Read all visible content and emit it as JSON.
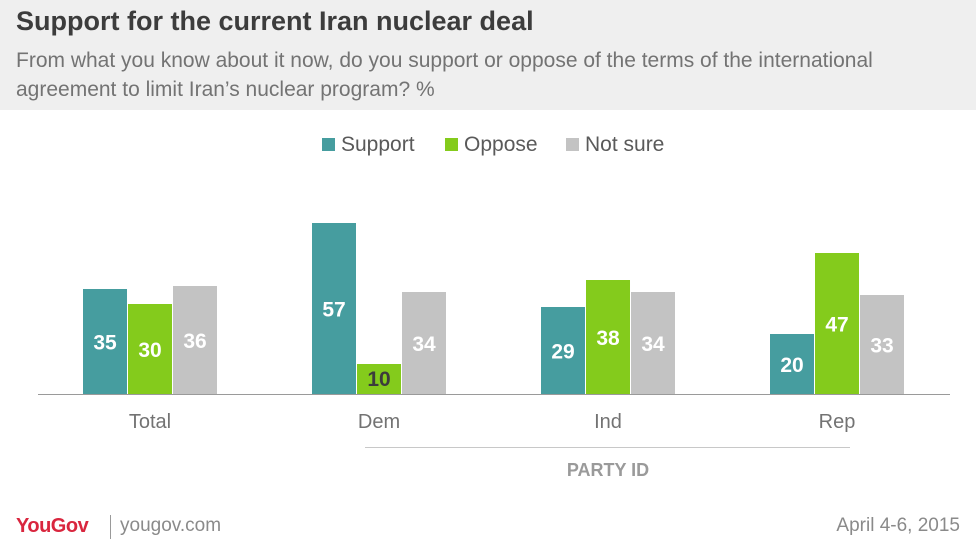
{
  "header": {
    "title": "Support for the current Iran nuclear deal",
    "subtitle": "From what you know about it now, do you support or oppose of the terms of the international agreement to limit Iran’s nuclear program? %"
  },
  "chart_data": {
    "type": "bar",
    "categories": [
      "Total",
      "Dem",
      "Ind",
      "Rep"
    ],
    "series": [
      {
        "name": "Support",
        "color": "#469d9f",
        "values": [
          35,
          57,
          29,
          20
        ]
      },
      {
        "name": "Oppose",
        "color": "#84cb1c",
        "values": [
          30,
          10,
          38,
          47
        ]
      },
      {
        "name": "Not sure",
        "color": "#c3c3c3",
        "values": [
          36,
          34,
          34,
          33
        ]
      }
    ],
    "group_label": "PARTY ID",
    "ylim": [
      0,
      60
    ],
    "legend": "top-center",
    "grid": false,
    "data_labels": true
  },
  "footer": {
    "logo": "YouGov",
    "site": "yougov.com",
    "date": "April 4-6, 2015"
  }
}
